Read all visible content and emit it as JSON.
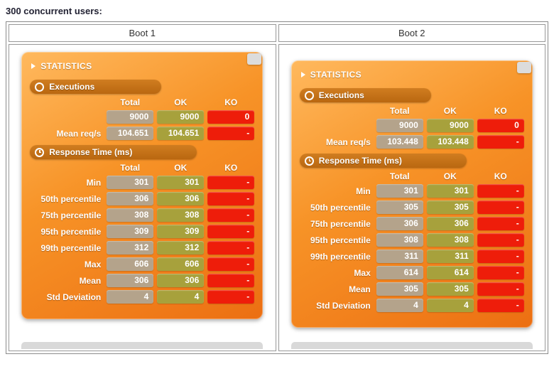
{
  "page": {
    "title": "300 concurrent users:"
  },
  "table": {
    "boot1_header": "Boot 1",
    "boot2_header": "Boot 2"
  },
  "col_headers": {
    "total": "Total",
    "ok": "OK",
    "ko": "KO"
  },
  "panels": [
    {
      "statistics_title": "STATISTICS",
      "executions": {
        "title": "Executions",
        "rows": [
          {
            "label": "",
            "total": "9000",
            "ok": "9000",
            "ko": "0"
          },
          {
            "label": "Mean req/s",
            "total": "104.651",
            "ok": "104.651",
            "ko": "-"
          }
        ]
      },
      "response_time": {
        "title": "Response Time (ms)",
        "rows": [
          {
            "label": "Min",
            "total": "301",
            "ok": "301",
            "ko": "-"
          },
          {
            "label": "50th percentile",
            "total": "306",
            "ok": "306",
            "ko": "-"
          },
          {
            "label": "75th percentile",
            "total": "308",
            "ok": "308",
            "ko": "-"
          },
          {
            "label": "95th percentile",
            "total": "309",
            "ok": "309",
            "ko": "-"
          },
          {
            "label": "99th percentile",
            "total": "312",
            "ok": "312",
            "ko": "-"
          },
          {
            "label": "Max",
            "total": "606",
            "ok": "606",
            "ko": "-"
          },
          {
            "label": "Mean",
            "total": "306",
            "ok": "306",
            "ko": "-"
          },
          {
            "label": "Std Deviation",
            "total": "4",
            "ok": "4",
            "ko": "-"
          }
        ]
      }
    },
    {
      "statistics_title": "STATISTICS",
      "executions": {
        "title": "Executions",
        "rows": [
          {
            "label": "",
            "total": "9000",
            "ok": "9000",
            "ko": "0"
          },
          {
            "label": "Mean req/s",
            "total": "103.448",
            "ok": "103.448",
            "ko": "-"
          }
        ]
      },
      "response_time": {
        "title": "Response Time (ms)",
        "rows": [
          {
            "label": "Min",
            "total": "301",
            "ok": "301",
            "ko": "-"
          },
          {
            "label": "50th percentile",
            "total": "305",
            "ok": "305",
            "ko": "-"
          },
          {
            "label": "75th percentile",
            "total": "306",
            "ok": "306",
            "ko": "-"
          },
          {
            "label": "95th percentile",
            "total": "308",
            "ok": "308",
            "ko": "-"
          },
          {
            "label": "99th percentile",
            "total": "311",
            "ok": "311",
            "ko": "-"
          },
          {
            "label": "Max",
            "total": "614",
            "ok": "614",
            "ko": "-"
          },
          {
            "label": "Mean",
            "total": "305",
            "ok": "305",
            "ko": "-"
          },
          {
            "label": "Std Deviation",
            "total": "4",
            "ok": "4",
            "ko": "-"
          }
        ]
      }
    }
  ]
}
